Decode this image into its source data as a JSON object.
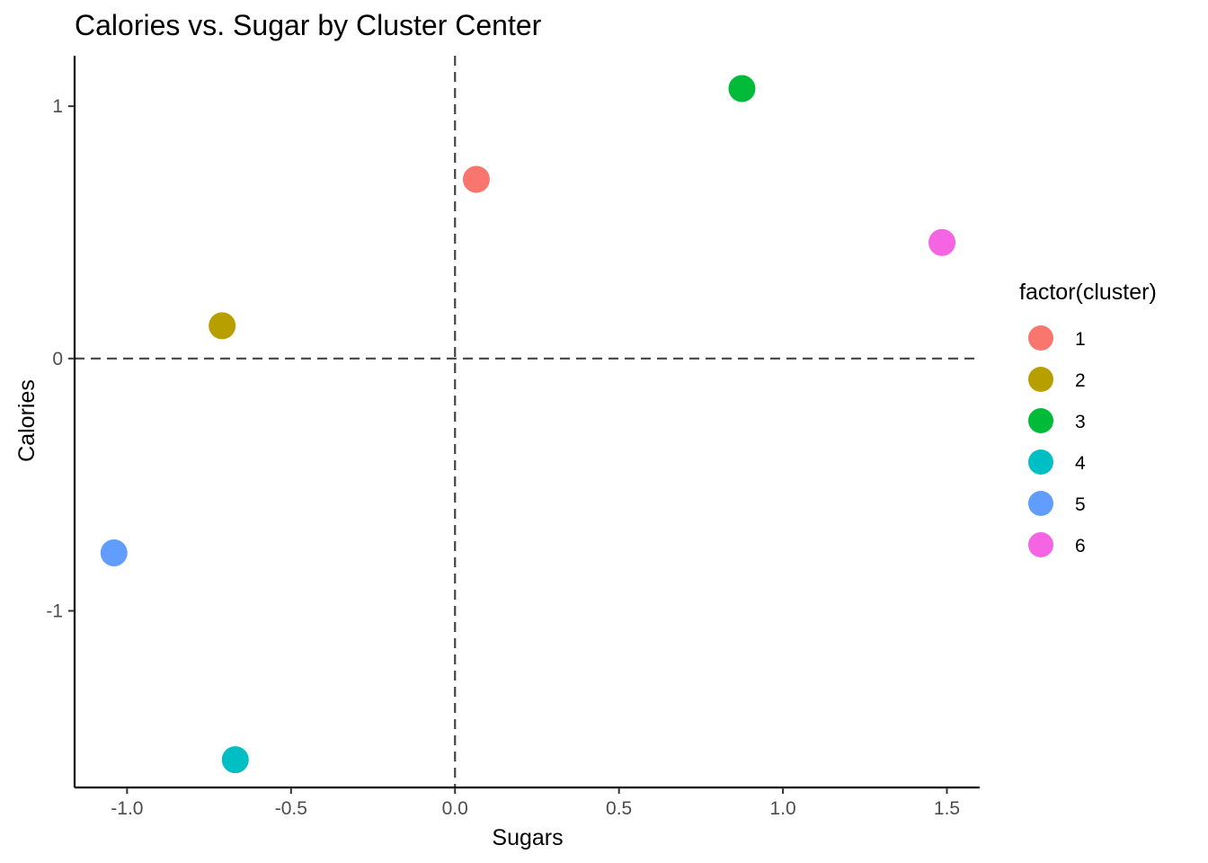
{
  "chart_data": {
    "type": "scatter",
    "title": "Calories vs. Sugar by Cluster Center",
    "xlabel": "Sugars",
    "ylabel": "Calories",
    "xlim": [
      -1.16,
      1.6
    ],
    "ylim": [
      -1.7,
      1.2
    ],
    "x_ticks": [
      -1.0,
      -0.5,
      0.0,
      0.5,
      1.0,
      1.5
    ],
    "x_tick_labels": [
      "-1.0",
      "-0.5",
      "0.0",
      "0.5",
      "1.0",
      "1.5"
    ],
    "y_ticks": [
      -1,
      0,
      1
    ],
    "y_tick_labels": [
      "-1",
      "0",
      "1"
    ],
    "reference_lines": {
      "x": 0,
      "y": 0,
      "style": "dashed"
    },
    "grid": false,
    "legend": {
      "title": "factor(cluster)",
      "position": "right"
    },
    "series": [
      {
        "name": "1",
        "color": "#F8766D",
        "points": [
          {
            "x": 0.065,
            "y": 0.71
          }
        ]
      },
      {
        "name": "2",
        "color": "#B79F00",
        "points": [
          {
            "x": -0.71,
            "y": 0.13
          }
        ]
      },
      {
        "name": "3",
        "color": "#00BA38",
        "points": [
          {
            "x": 0.875,
            "y": 1.07
          }
        ]
      },
      {
        "name": "4",
        "color": "#00BFC4",
        "points": [
          {
            "x": -0.67,
            "y": -1.59
          }
        ]
      },
      {
        "name": "5",
        "color": "#619CFF",
        "points": [
          {
            "x": -1.04,
            "y": -0.77
          }
        ]
      },
      {
        "name": "6",
        "color": "#F564E3",
        "points": [
          {
            "x": 1.485,
            "y": 0.46
          }
        ]
      }
    ]
  }
}
